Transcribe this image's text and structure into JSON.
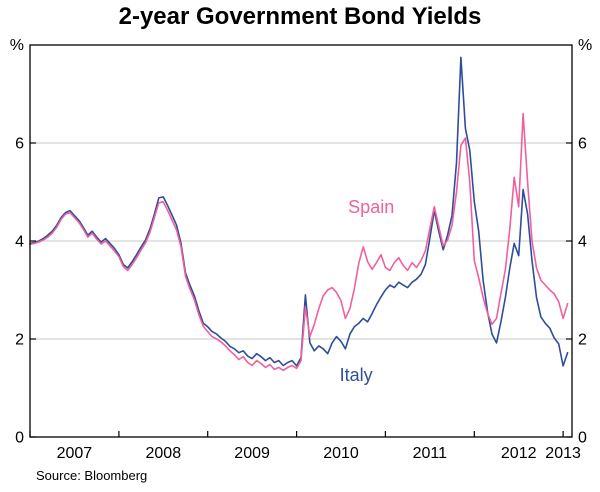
{
  "page": {
    "title": "2-year Government Bond Yields",
    "source": "Source: Bloomberg"
  },
  "chart_data": {
    "type": "line",
    "title": "2-year Government Bond Yields",
    "ylabel_left": "%",
    "ylabel_right": "%",
    "ylim": [
      0,
      8
    ],
    "xlim": [
      2007.0,
      2013.1
    ],
    "grid_on": true,
    "grid_color": "#c8c8c8",
    "frame_color": "#000000",
    "legend_position": "inline-labels",
    "gridlines": [
      2,
      4,
      6
    ],
    "yticks": [
      {
        "value": 0,
        "label": "0"
      },
      {
        "value": 2,
        "label": "2"
      },
      {
        "value": 4,
        "label": "4"
      },
      {
        "value": 6,
        "label": "6"
      }
    ],
    "xticks": [
      {
        "value": 2007,
        "label": "2007",
        "label_at": 2007.5
      },
      {
        "value": 2008,
        "label": "2008",
        "label_at": 2008.5
      },
      {
        "value": 2009,
        "label": "2009",
        "label_at": 2009.5
      },
      {
        "value": 2010,
        "label": "2010",
        "label_at": 2010.5
      },
      {
        "value": 2011,
        "label": "2011",
        "label_at": 2011.5
      },
      {
        "value": 2012,
        "label": "2012",
        "label_at": 2012.5
      },
      {
        "value": 2013,
        "label": "2013",
        "label_at": 2013.0
      }
    ],
    "x": [
      2007.0,
      2007.05,
      2007.1,
      2007.15,
      2007.2,
      2007.25,
      2007.3,
      2007.35,
      2007.4,
      2007.45,
      2007.5,
      2007.55,
      2007.6,
      2007.65,
      2007.7,
      2007.75,
      2007.8,
      2007.85,
      2007.9,
      2007.95,
      2008.0,
      2008.05,
      2008.1,
      2008.15,
      2008.2,
      2008.25,
      2008.3,
      2008.35,
      2008.4,
      2008.45,
      2008.5,
      2008.55,
      2008.6,
      2008.65,
      2008.7,
      2008.75,
      2008.8,
      2008.85,
      2008.9,
      2008.95,
      2009.0,
      2009.05,
      2009.1,
      2009.15,
      2009.2,
      2009.25,
      2009.3,
      2009.35,
      2009.4,
      2009.45,
      2009.5,
      2009.55,
      2009.6,
      2009.65,
      2009.7,
      2009.75,
      2009.8,
      2009.85,
      2009.9,
      2009.95,
      2010.0,
      2010.05,
      2010.1,
      2010.15,
      2010.2,
      2010.25,
      2010.3,
      2010.35,
      2010.4,
      2010.45,
      2010.5,
      2010.55,
      2010.6,
      2010.65,
      2010.7,
      2010.75,
      2010.8,
      2010.85,
      2010.9,
      2010.95,
      2011.0,
      2011.05,
      2011.1,
      2011.15,
      2011.2,
      2011.25,
      2011.3,
      2011.35,
      2011.4,
      2011.45,
      2011.5,
      2011.55,
      2011.6,
      2011.65,
      2011.7,
      2011.75,
      2011.8,
      2011.85,
      2011.9,
      2011.95,
      2012.0,
      2012.05,
      2012.1,
      2012.15,
      2012.2,
      2012.25,
      2012.3,
      2012.35,
      2012.4,
      2012.45,
      2012.5,
      2012.55,
      2012.6,
      2012.65,
      2012.7,
      2012.75,
      2012.8,
      2012.85,
      2012.9,
      2012.95,
      2013.0,
      2013.05
    ],
    "series": [
      {
        "name": "Italy",
        "color": "#2e4d9b",
        "label": {
          "x": 2010.67,
          "y": 1.14
        },
        "values": [
          3.95,
          3.97,
          4.0,
          4.05,
          4.12,
          4.2,
          4.32,
          4.48,
          4.58,
          4.62,
          4.52,
          4.42,
          4.28,
          4.12,
          4.2,
          4.08,
          3.98,
          4.05,
          3.95,
          3.85,
          3.72,
          3.52,
          3.45,
          3.58,
          3.72,
          3.88,
          4.02,
          4.25,
          4.55,
          4.88,
          4.9,
          4.72,
          4.52,
          4.32,
          3.95,
          3.35,
          3.1,
          2.88,
          2.58,
          2.32,
          2.25,
          2.15,
          2.1,
          2.02,
          1.95,
          1.85,
          1.8,
          1.72,
          1.76,
          1.65,
          1.6,
          1.7,
          1.64,
          1.56,
          1.62,
          1.52,
          1.56,
          1.46,
          1.52,
          1.56,
          1.45,
          1.62,
          2.9,
          1.92,
          1.76,
          1.86,
          1.8,
          1.7,
          1.92,
          2.05,
          1.95,
          1.8,
          2.1,
          2.25,
          2.32,
          2.42,
          2.35,
          2.52,
          2.7,
          2.86,
          3.0,
          3.1,
          3.05,
          3.16,
          3.1,
          3.05,
          3.16,
          3.22,
          3.32,
          3.52,
          4.05,
          4.62,
          4.2,
          3.82,
          4.12,
          4.52,
          5.6,
          7.75,
          6.3,
          5.85,
          4.8,
          4.2,
          3.2,
          2.55,
          2.1,
          1.92,
          2.35,
          2.85,
          3.45,
          3.95,
          3.7,
          5.05,
          4.55,
          3.6,
          2.85,
          2.45,
          2.32,
          2.22,
          2.02,
          1.9,
          1.45,
          1.72
        ]
      },
      {
        "name": "Spain",
        "color": "#f0609e",
        "label": {
          "x": 2010.84,
          "y": 4.57
        },
        "values": [
          3.93,
          3.95,
          3.98,
          4.02,
          4.08,
          4.16,
          4.28,
          4.44,
          4.55,
          4.58,
          4.48,
          4.38,
          4.24,
          4.08,
          4.16,
          4.04,
          3.94,
          4.0,
          3.9,
          3.8,
          3.68,
          3.48,
          3.4,
          3.52,
          3.66,
          3.82,
          3.96,
          4.18,
          4.48,
          4.78,
          4.8,
          4.62,
          4.42,
          4.22,
          3.88,
          3.28,
          3.02,
          2.8,
          2.5,
          2.26,
          2.15,
          2.05,
          2.0,
          1.94,
          1.86,
          1.76,
          1.68,
          1.58,
          1.64,
          1.52,
          1.46,
          1.56,
          1.5,
          1.42,
          1.48,
          1.38,
          1.42,
          1.36,
          1.42,
          1.46,
          1.4,
          1.56,
          2.65,
          2.05,
          2.3,
          2.62,
          2.88,
          3.0,
          3.05,
          2.95,
          2.78,
          2.42,
          2.62,
          3.02,
          3.55,
          3.88,
          3.58,
          3.42,
          3.56,
          3.72,
          3.46,
          3.4,
          3.56,
          3.66,
          3.5,
          3.4,
          3.56,
          3.46,
          3.6,
          3.8,
          4.25,
          4.7,
          4.3,
          3.9,
          4.02,
          4.32,
          5.0,
          5.95,
          6.1,
          5.2,
          3.6,
          3.25,
          2.85,
          2.52,
          2.3,
          2.42,
          2.92,
          3.42,
          4.25,
          5.3,
          4.7,
          6.6,
          5.2,
          4.0,
          3.45,
          3.2,
          3.1,
          3.0,
          2.92,
          2.76,
          2.42,
          2.72
        ]
      }
    ]
  }
}
